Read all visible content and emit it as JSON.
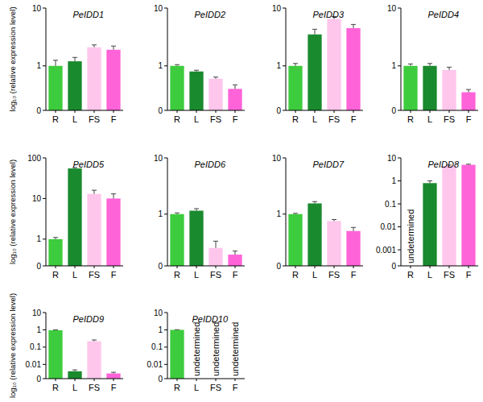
{
  "chart_data": [
    {
      "type": "bar",
      "title": "PeIDD1",
      "y_label": "log₁₀ (relative expression level)",
      "log": "y",
      "categories": [
        "R",
        "L",
        "FS",
        "F"
      ],
      "values": [
        1.0,
        1.2,
        2.1,
        1.9
      ],
      "errors": [
        0.25,
        0.2,
        0.2,
        0.3
      ],
      "colors": [
        "#3dcc3d",
        "#1a8a2e",
        "#ffc6ec",
        "#ff63d8"
      ],
      "ylim": [
        0.17,
        10
      ],
      "yticks": [
        {
          "value": 0.17,
          "label": "0"
        },
        1,
        10
      ]
    },
    {
      "type": "bar",
      "title": "PeIDD2",
      "log": "y",
      "categories": [
        "R",
        "L",
        "FS",
        "F"
      ],
      "values": [
        1.0,
        0.8,
        0.6,
        0.4
      ],
      "errors": [
        0.05,
        0.04,
        0.04,
        0.07
      ],
      "colors": [
        "#3dcc3d",
        "#1a8a2e",
        "#ffc6ec",
        "#ff63d8"
      ],
      "ylim": [
        0.17,
        10
      ],
      "yticks": [
        {
          "value": 0.17,
          "label": "0"
        },
        1,
        10
      ]
    },
    {
      "type": "bar",
      "title": "PeIDD3",
      "log": "y",
      "categories": [
        "R",
        "L",
        "FS",
        "F"
      ],
      "values": [
        1.0,
        3.5,
        6.5,
        4.5
      ],
      "errors": [
        0.1,
        0.8,
        0.6,
        0.7
      ],
      "colors": [
        "#3dcc3d",
        "#1a8a2e",
        "#ffc6ec",
        "#ff63d8"
      ],
      "ylim": [
        0.17,
        10
      ],
      "yticks": [
        {
          "value": 0.17,
          "label": "0"
        },
        1,
        10
      ]
    },
    {
      "type": "bar",
      "title": "PeIDD4",
      "log": "y",
      "categories": [
        "R",
        "L",
        "FS",
        "F"
      ],
      "values": [
        1.0,
        1.0,
        0.85,
        0.35
      ],
      "errors": [
        0.08,
        0.1,
        0.1,
        0.04
      ],
      "colors": [
        "#3dcc3d",
        "#1a8a2e",
        "#ffc6ec",
        "#ff63d8"
      ],
      "ylim": [
        0.17,
        10
      ],
      "yticks": [
        {
          "value": 0.17,
          "label": "0"
        },
        1,
        10
      ]
    },
    {
      "type": "bar",
      "title": "PeIDD5",
      "y_label": "log₁₀ (relative expression level)",
      "log": "y",
      "categories": [
        "R",
        "L",
        "FS",
        "F"
      ],
      "values": [
        1.0,
        55,
        13,
        10
      ],
      "errors": [
        0.1,
        3,
        3,
        3
      ],
      "colors": [
        "#3dcc3d",
        "#1a8a2e",
        "#ffc6ec",
        "#ff63d8"
      ],
      "ylim": [
        0.22,
        100
      ],
      "yticks": [
        {
          "value": 0.22,
          "label": "0"
        },
        1,
        10,
        100
      ]
    },
    {
      "type": "bar",
      "title": "PeIDD6",
      "log": "y",
      "categories": [
        "R",
        "L",
        "FS",
        "F"
      ],
      "values": [
        1.0,
        1.15,
        0.25,
        0.19
      ],
      "errors": [
        0.05,
        0.1,
        0.08,
        0.03
      ],
      "colors": [
        "#3dcc3d",
        "#1a8a2e",
        "#ffc6ec",
        "#ff63d8"
      ],
      "ylim": [
        0.12,
        10
      ],
      "yticks": [
        {
          "value": 0.12,
          "label": "0"
        },
        1,
        10
      ]
    },
    {
      "type": "bar",
      "title": "PeIDD7",
      "log": "y",
      "categories": [
        "R",
        "L",
        "FS",
        "F"
      ],
      "values": [
        1.0,
        1.55,
        0.75,
        0.5
      ],
      "errors": [
        0.03,
        0.12,
        0.05,
        0.08
      ],
      "colors": [
        "#3dcc3d",
        "#1a8a2e",
        "#ffc6ec",
        "#ff63d8"
      ],
      "ylim": [
        0.12,
        10
      ],
      "yticks": [
        {
          "value": 0.12,
          "label": "0"
        },
        1,
        10
      ]
    },
    {
      "type": "bar",
      "title": "PeIDD8",
      "log": "y",
      "categories": [
        "R",
        "L",
        "FS",
        "F"
      ],
      "values": [
        null,
        0.8,
        4.5,
        5.0
      ],
      "errors": [
        null,
        0.2,
        0.4,
        0.3
      ],
      "annotations": [
        {
          "text": "undetermined",
          "category": "R"
        }
      ],
      "colors": [
        "#3dcc3d",
        "#1a8a2e",
        "#ffc6ec",
        "#ff63d8"
      ],
      "ylim": [
        0.0002,
        10
      ],
      "yticks": [
        {
          "value": 0.0002,
          "label": "0"
        },
        0.001,
        0.01,
        0.1,
        1,
        10
      ]
    },
    {
      "type": "bar",
      "title": "PeIDD9",
      "y_label": "log₁₀ (relative expression level)",
      "log": "y",
      "categories": [
        "R",
        "L",
        "FS",
        "F"
      ],
      "values": [
        0.95,
        0.004,
        0.22,
        0.003
      ],
      "errors": [
        0.05,
        0.0008,
        0.04,
        0.0005
      ],
      "colors": [
        "#3dcc3d",
        "#1a8a2e",
        "#ffc6ec",
        "#ff63d8"
      ],
      "ylim": [
        0.0015,
        10
      ],
      "yticks": [
        {
          "value": 0.0015,
          "label": "0"
        },
        0.01,
        0.1,
        1,
        10
      ]
    },
    {
      "type": "bar",
      "title": "PeIDD10",
      "log": "y",
      "categories": [
        "R",
        "L",
        "FS",
        "F"
      ],
      "values": [
        1.0,
        null,
        null,
        null
      ],
      "errors": [
        0.02,
        null,
        null,
        null
      ],
      "annotations": [
        {
          "text": "undetermined",
          "category": "L"
        },
        {
          "text": "undetermined",
          "category": "FS"
        },
        {
          "text": "undetermined",
          "category": "F"
        }
      ],
      "colors": [
        "#3dcc3d",
        "#1a8a2e",
        "#ffc6ec",
        "#ff63d8"
      ],
      "ylim": [
        0.0015,
        10
      ],
      "yticks": [
        {
          "value": 0.0015,
          "label": "0"
        },
        0.01,
        0.1,
        1,
        10
      ]
    }
  ]
}
